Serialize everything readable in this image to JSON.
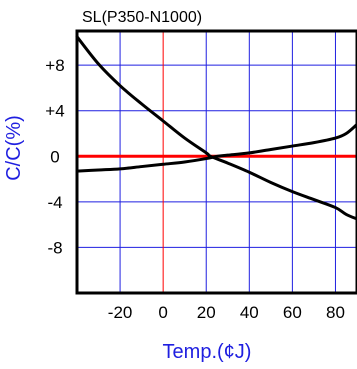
{
  "chart_data": {
    "type": "line",
    "title": "SL(P350-N1000)",
    "xlabel": "Temp.(¢J)",
    "ylabel": "C/C(%)",
    "xlim": [
      -40,
      90
    ],
    "ylim": [
      -12,
      11
    ],
    "xticks": [
      -20,
      0,
      20,
      40,
      60,
      80
    ],
    "xtick_labels": [
      "-20",
      "0",
      "20",
      "40",
      "60",
      "80"
    ],
    "yticks": [
      8,
      4,
      0,
      -4,
      -8
    ],
    "ytick_labels": [
      "+8",
      "+4",
      "0",
      "-4",
      "-8"
    ],
    "grid": true,
    "colors": {
      "grid": "#1f1fe0",
      "zero_lines": "#ff0000",
      "series": "#000000",
      "axis_title": "#1f1fe0"
    },
    "series": [
      {
        "x": [
          -40,
          -30,
          -20,
          -10,
          0,
          10,
          20,
          22,
          30,
          40,
          50,
          60,
          70,
          80,
          85,
          90
        ],
        "values": [
          10.5,
          8.1,
          6.2,
          4.6,
          3.1,
          1.6,
          0.3,
          0.0,
          -0.6,
          -1.4,
          -2.3,
          -3.1,
          -3.8,
          -4.5,
          -5.1,
          -5.5
        ]
      },
      {
        "x": [
          -40,
          -30,
          -20,
          -10,
          0,
          10,
          20,
          25,
          30,
          40,
          50,
          60,
          70,
          80,
          85,
          90
        ],
        "values": [
          -1.3,
          -1.2,
          -1.1,
          -0.9,
          -0.7,
          -0.5,
          -0.2,
          0.0,
          0.1,
          0.3,
          0.6,
          0.9,
          1.2,
          1.6,
          2.0,
          2.8
        ]
      }
    ]
  }
}
